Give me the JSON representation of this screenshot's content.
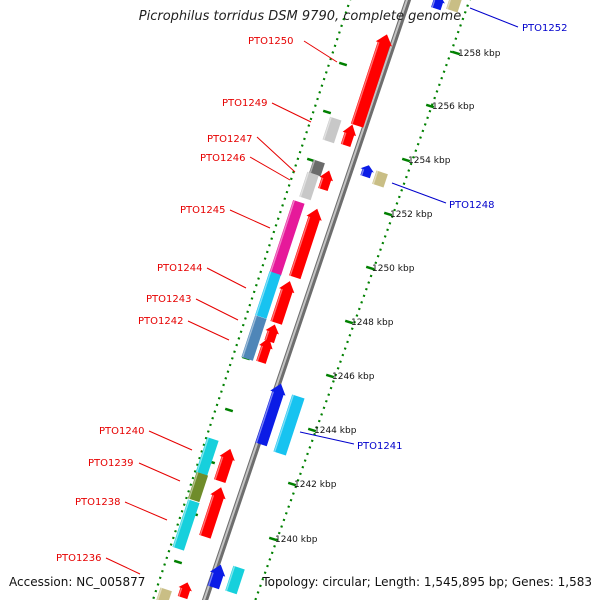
{
  "title": "Picrophilus torridus DSM 9790, complete genome",
  "accession": "Accession: NC_005877",
  "topology": "Topology: circular; Length: 1,545,895 bp; Genes: 1,583",
  "colors": {
    "forward_label": "#e60000",
    "reverse_label": "#0000cc",
    "backbone": "#8a8a8a",
    "tick": "#008000"
  },
  "scale_labels": [
    "1258 kbp",
    "1256 kbp",
    "1254 kbp",
    "1252 kbp",
    "1250 kbp",
    "1248 kbp",
    "1246 kbp",
    "1244 kbp",
    "1242 kbp",
    "1240 kbp"
  ],
  "gene_labels_left": [
    "PTO1250",
    "PTO1249",
    "PTO1247",
    "PTO1246",
    "PTO1245",
    "PTO1244",
    "PTO1243",
    "PTO1242",
    "PTO1240",
    "PTO1239",
    "PTO1238",
    "PTO1236"
  ],
  "gene_labels_right": [
    "PTO1252",
    "PTO1248",
    "PTO1241"
  ]
}
